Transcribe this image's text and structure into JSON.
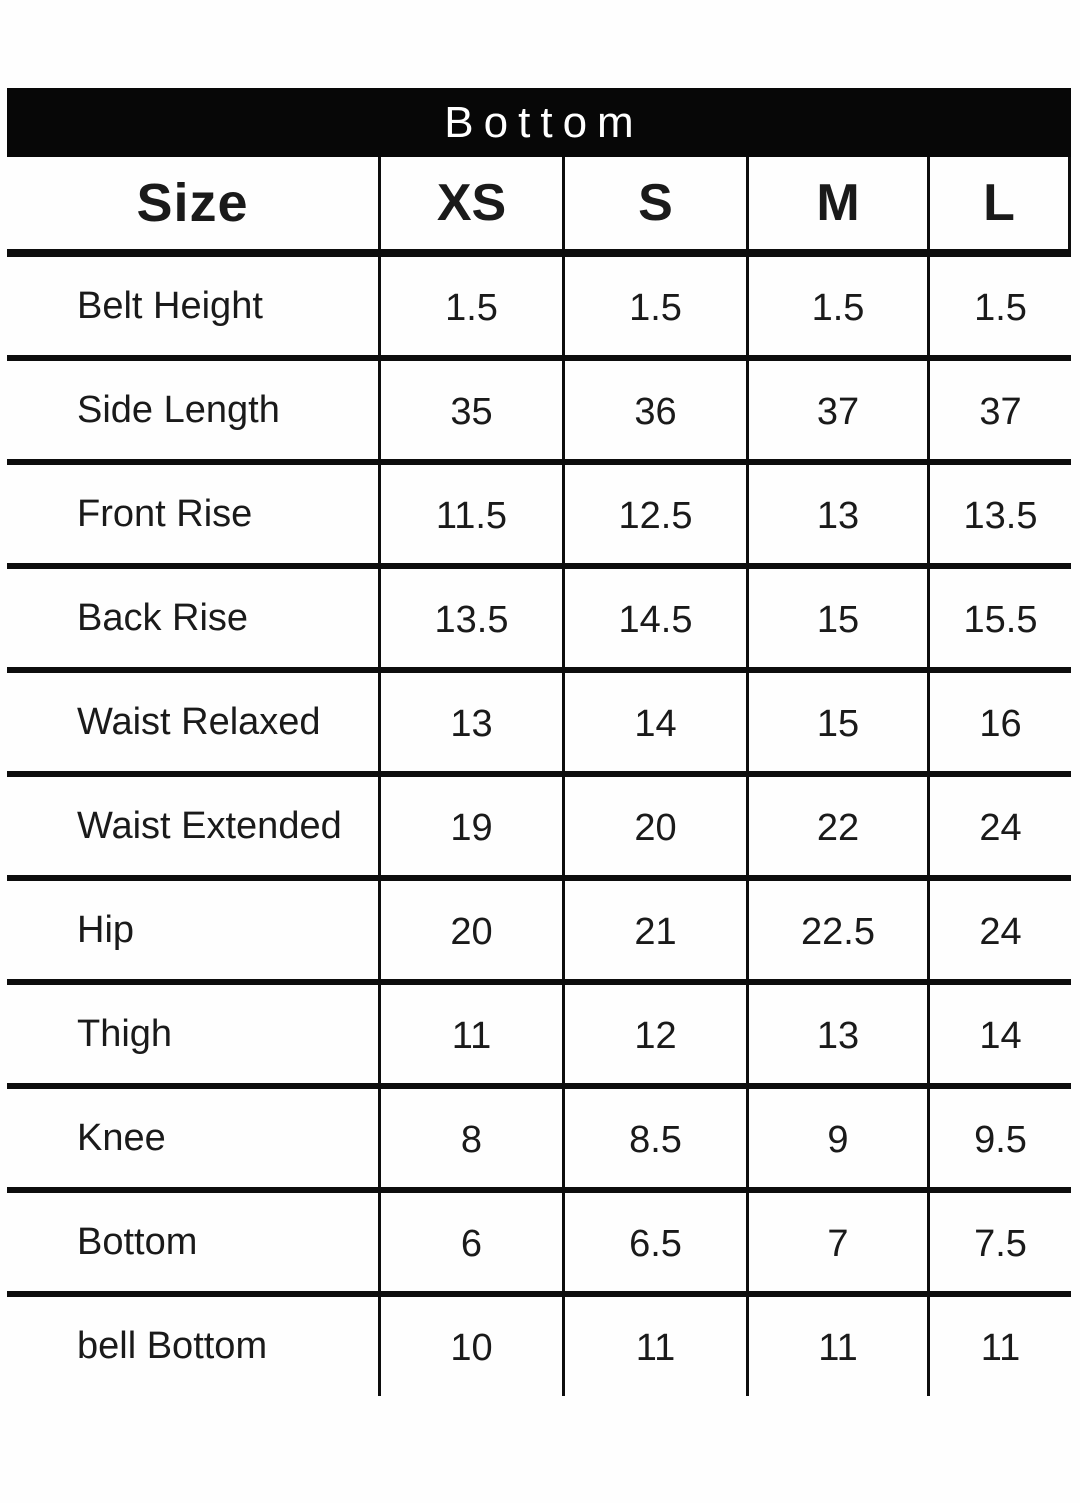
{
  "header": {
    "title": "Bottom",
    "size_label": "Size",
    "sizes": [
      "XS",
      "S",
      "M",
      "L"
    ]
  },
  "rows": [
    {
      "label": "Belt Height",
      "values": [
        "1.5",
        "1.5",
        "1.5",
        "1.5"
      ]
    },
    {
      "label": "Side Length",
      "values": [
        "35",
        "36",
        "37",
        "37"
      ]
    },
    {
      "label": "Front Rise",
      "values": [
        "11.5",
        "12.5",
        "13",
        "13.5"
      ]
    },
    {
      "label": "Back Rise",
      "values": [
        "13.5",
        "14.5",
        "15",
        "15.5"
      ]
    },
    {
      "label": "Waist Relaxed",
      "values": [
        "13",
        "14",
        "15",
        "16"
      ]
    },
    {
      "label": "Waist Extended",
      "values": [
        "19",
        "20",
        "22",
        "24"
      ]
    },
    {
      "label": "Hip",
      "values": [
        "20",
        "21",
        "22.5",
        "24"
      ]
    },
    {
      "label": "Thigh",
      "values": [
        "11",
        "12",
        "13",
        "14"
      ]
    },
    {
      "label": "Knee",
      "values": [
        "8",
        "8.5",
        "9",
        "9.5"
      ]
    },
    {
      "label": "Bottom",
      "values": [
        "6",
        "6.5",
        "7",
        "7.5"
      ]
    },
    {
      "label": "bell Bottom",
      "values": [
        "10",
        "11",
        "11",
        "11"
      ]
    }
  ],
  "colors": {
    "header_bg": "#070707",
    "header_text": "#ffffff",
    "text": "#1a1a1a",
    "line": "#0d0d0d"
  },
  "chart_data": {
    "type": "table",
    "title": "Bottom",
    "categories": [
      "XS",
      "S",
      "M",
      "L"
    ],
    "series": [
      {
        "name": "Belt Height",
        "values": [
          1.5,
          1.5,
          1.5,
          1.5
        ]
      },
      {
        "name": "Side Length",
        "values": [
          35,
          36,
          37,
          37
        ]
      },
      {
        "name": "Front Rise",
        "values": [
          11.5,
          12.5,
          13,
          13.5
        ]
      },
      {
        "name": "Back Rise",
        "values": [
          13.5,
          14.5,
          15,
          15.5
        ]
      },
      {
        "name": "Waist Relaxed",
        "values": [
          13,
          14,
          15,
          16
        ]
      },
      {
        "name": "Waist Extended",
        "values": [
          19,
          20,
          22,
          24
        ]
      },
      {
        "name": "Hip",
        "values": [
          20,
          21,
          22.5,
          24
        ]
      },
      {
        "name": "Thigh",
        "values": [
          11,
          12,
          13,
          14
        ]
      },
      {
        "name": "Knee",
        "values": [
          8,
          8.5,
          9,
          9.5
        ]
      },
      {
        "name": "Bottom",
        "values": [
          6,
          6.5,
          7,
          7.5
        ]
      },
      {
        "name": "bell Bottom",
        "values": [
          10,
          11,
          11,
          11
        ]
      }
    ]
  }
}
